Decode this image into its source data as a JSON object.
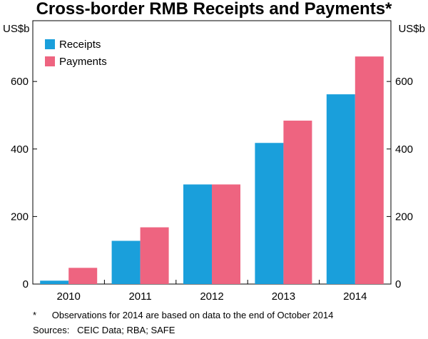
{
  "chart_data": {
    "type": "bar",
    "title": "Cross-border RMB Receipts and Payments*",
    "ylabel_left": "US$b",
    "ylabel_right": "US$b",
    "ylim": [
      0,
      780
    ],
    "yticks": [
      0,
      200,
      400,
      600
    ],
    "categories": [
      "2010",
      "2011",
      "2012",
      "2013",
      "2014"
    ],
    "series": [
      {
        "name": "Receipts",
        "color": "#1a9fdb",
        "values": [
          10,
          128,
          295,
          418,
          562
        ]
      },
      {
        "name": "Payments",
        "color": "#ee6480",
        "values": [
          48,
          168,
          295,
          484,
          674
        ]
      }
    ],
    "legend_position": "top-left",
    "grid": false
  },
  "notes": {
    "footnote": "*      Observations for 2014 are based on data to the end of October 2014",
    "sources": "Sources:   CEIC Data; RBA; SAFE"
  }
}
